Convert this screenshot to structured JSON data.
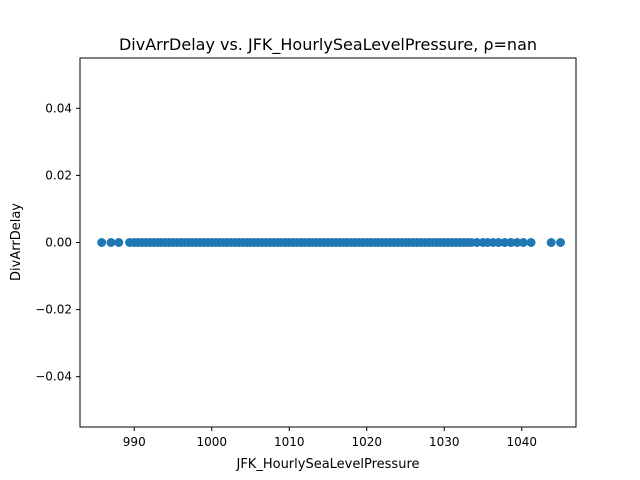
{
  "chart_data": {
    "type": "scatter",
    "title": "DivArrDelay vs. JFK_HourlySeaLevelPressure, ρ=nan",
    "xlabel": "JFK_HourlySeaLevelPressure",
    "ylabel": "DivArrDelay",
    "xlim": [
      983,
      1047
    ],
    "ylim": [
      -0.055,
      0.055
    ],
    "x_ticks": [
      990,
      1000,
      1010,
      1020,
      1030,
      1040
    ],
    "x_tick_labels": [
      "990",
      "1000",
      "1010",
      "1020",
      "1030",
      "1040"
    ],
    "y_ticks": [
      -0.04,
      -0.02,
      0.0,
      0.02,
      0.04
    ],
    "y_tick_labels": [
      "−0.04",
      "−0.02",
      "0.00",
      "0.02",
      "0.04"
    ],
    "grid": false,
    "legend": "none",
    "series": [
      {
        "color": "#1f77b4",
        "dense_x_range": [
          990.5,
          1033.0
        ],
        "dense_x_step": 0.5,
        "x_extra": [
          985.8,
          987.0,
          988.0,
          989.4,
          990.0,
          1033.5,
          1034.2,
          1035.0,
          1035.6,
          1036.3,
          1037.0,
          1037.8,
          1038.6,
          1039.4,
          1040.2,
          1041.2,
          1043.8,
          1045.0
        ],
        "y_constant": 0.0
      }
    ]
  }
}
